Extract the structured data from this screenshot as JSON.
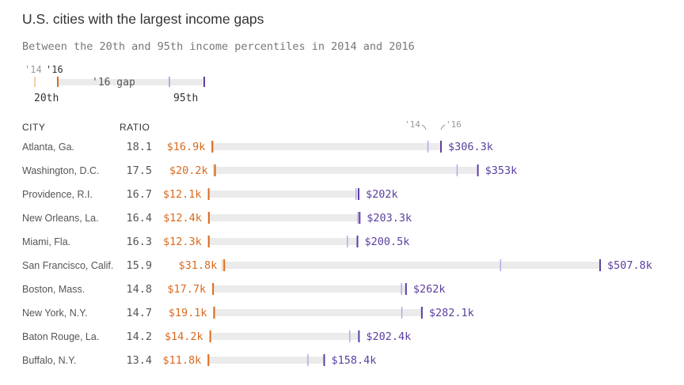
{
  "title": "U.S. cities with the largest income gaps",
  "subtitle": "Between the 20th and 95th income percentiles in 2014 and 2016",
  "legend": {
    "year_2014": "'14",
    "year_2016": "'16",
    "gap_label": "'16 gap",
    "p20_label": "20th",
    "p95_label": "95th"
  },
  "headers": {
    "city": "CITY",
    "ratio": "RATIO"
  },
  "colors": {
    "p20_2016": "#d96a1f",
    "p20_2014": "#f5cfa6",
    "p95_2016": "#5b3fa0",
    "p95_2014": "#b7a8e8",
    "gap_bar": "#ebebeb",
    "city_text": "#555555",
    "ratio_text": "#555555"
  },
  "chart_data": {
    "type": "range-bar",
    "title": "U.S. cities with the largest income gaps",
    "subtitle": "Between the 20th and 95th income percentiles in 2014 and 2016",
    "unit": "USD",
    "xlim": [
      0,
      520000
    ],
    "year_markers": [
      "'14",
      "'16"
    ],
    "rows": [
      {
        "city": "Atlanta, Ga.",
        "ratio": "18.1",
        "p20_label": "$16.9k",
        "p95_label": "$306.3k",
        "p20_2016": 16900,
        "p20_2014": 16300,
        "p95_2016": 306300,
        "p95_2014": 290000
      },
      {
        "city": "Washington, D.C.",
        "ratio": "17.5",
        "p20_label": "$20.2k",
        "p95_label": "$353k",
        "p20_2016": 20200,
        "p20_2014": 18700,
        "p95_2016": 353000,
        "p95_2014": 327000
      },
      {
        "city": "Providence, R.I.",
        "ratio": "16.7",
        "p20_label": "$12.1k",
        "p95_label": "$202k",
        "p20_2016": 12100,
        "p20_2014": 12500,
        "p95_2016": 202000,
        "p95_2014": 199000
      },
      {
        "city": "New Orleans, La.",
        "ratio": "16.4",
        "p20_label": "$12.4k",
        "p95_label": "$203.3k",
        "p20_2016": 12400,
        "p20_2014": 12200,
        "p95_2016": 203300,
        "p95_2014": 201500
      },
      {
        "city": "Miami, Fla.",
        "ratio": "16.3",
        "p20_label": "$12.3k",
        "p95_label": "$200.5k",
        "p20_2016": 12300,
        "p20_2014": 11900,
        "p95_2016": 200500,
        "p95_2014": 188000
      },
      {
        "city": "San Francisco, Calif.",
        "ratio": "15.9",
        "p20_label": "$31.8k",
        "p95_label": "$507.8k",
        "p20_2016": 31800,
        "p20_2014": 29500,
        "p95_2016": 507800,
        "p95_2014": 382000
      },
      {
        "city": "Boston, Mass.",
        "ratio": "14.8",
        "p20_label": "$17.7k",
        "p95_label": "$262k",
        "p20_2016": 17700,
        "p20_2014": 17700,
        "p95_2016": 262000,
        "p95_2014": 256500
      },
      {
        "city": "New York, N.Y.",
        "ratio": "14.7",
        "p20_label": "$19.1k",
        "p95_label": "$282.1k",
        "p20_2016": 19100,
        "p20_2014": 18600,
        "p95_2016": 282100,
        "p95_2014": 257000
      },
      {
        "city": "Baton Rouge, La.",
        "ratio": "14.2",
        "p20_label": "$14.2k",
        "p95_label": "$202.4k",
        "p20_2016": 14200,
        "p20_2014": 14200,
        "p95_2016": 202400,
        "p95_2014": 191000
      },
      {
        "city": "Buffalo, N.Y.",
        "ratio": "13.4",
        "p20_label": "$11.8k",
        "p95_label": "$158.4k",
        "p20_2016": 11800,
        "p20_2014": 11800,
        "p95_2016": 158400,
        "p95_2014": 138000
      }
    ]
  }
}
